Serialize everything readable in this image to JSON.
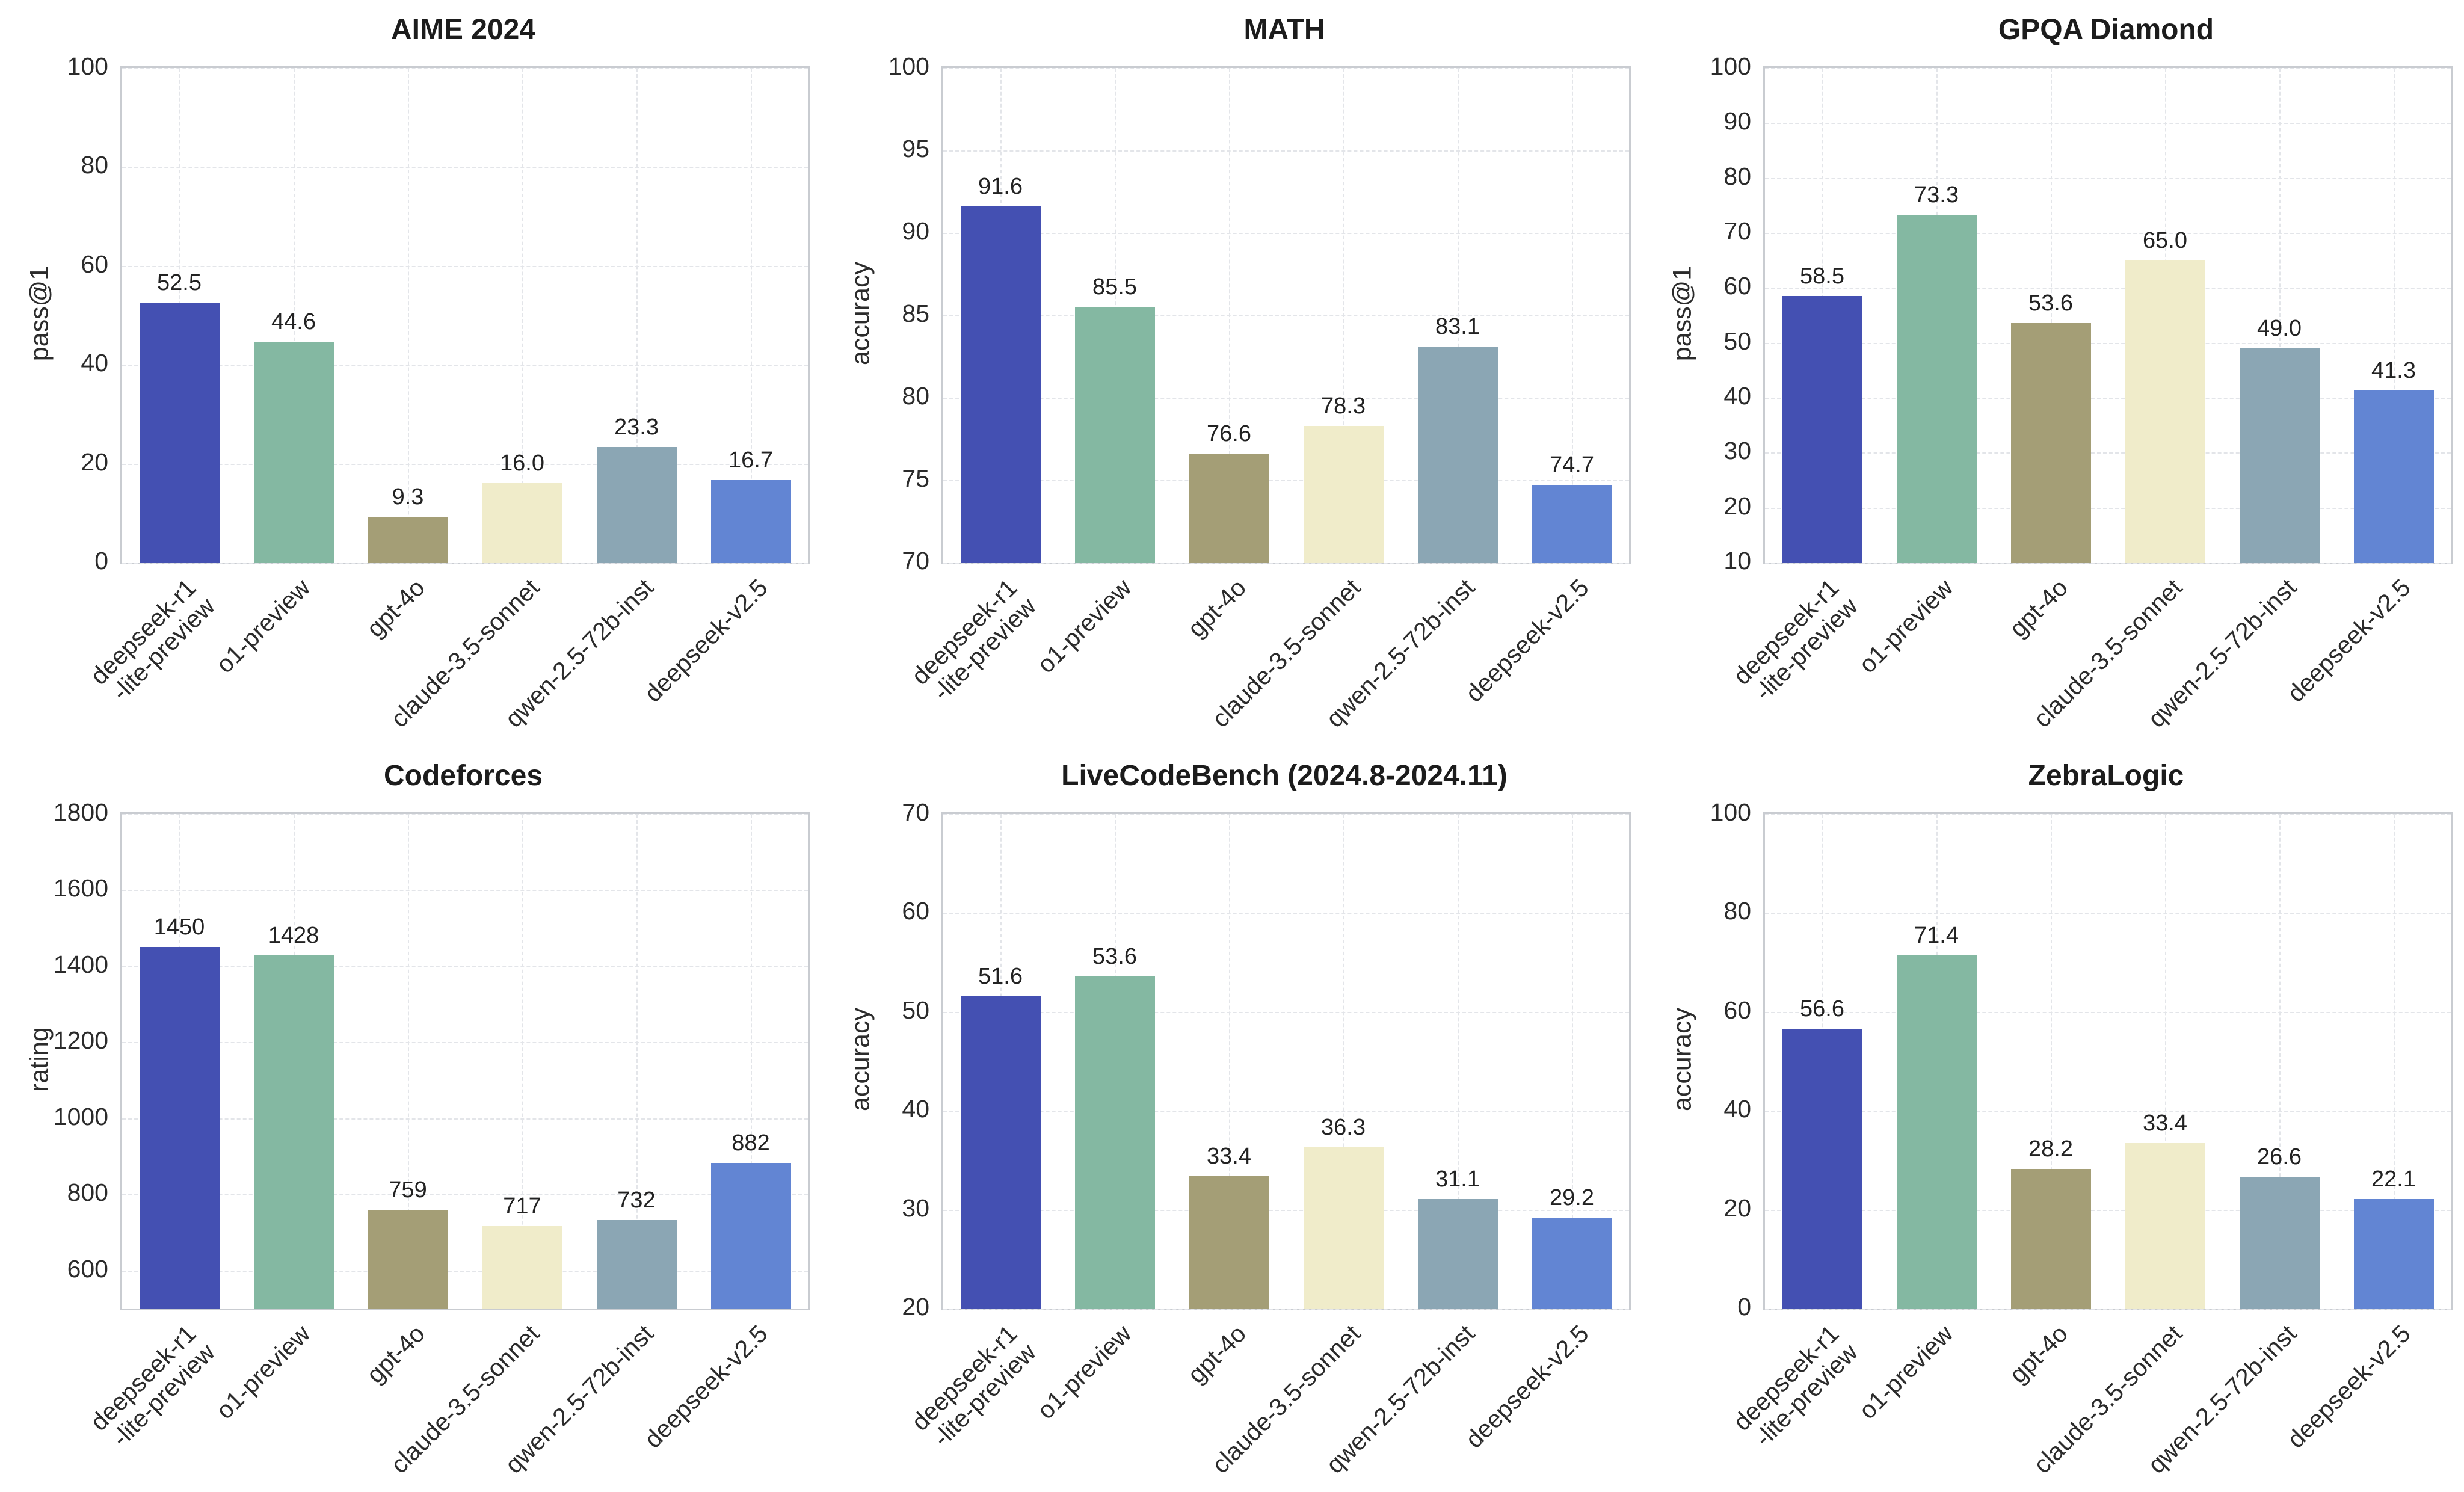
{
  "figure": {
    "background": "#ffffff",
    "grid_color": "#e3e5e9",
    "frame_color": "#c9ccd1",
    "title_color": "#1c1c1c",
    "tick_color": "#2b2b2b",
    "value_label_color": "#222222"
  },
  "palette": [
    "#4450b2",
    "#84b8a2",
    "#a49e76",
    "#f0ecca",
    "#8ba6b4",
    "#6285d3"
  ],
  "chart_data": [
    {
      "type": "bar",
      "title": "AIME 2024",
      "xlabel": "",
      "ylabel": "pass@1",
      "ylim": [
        0,
        100
      ],
      "yticks": [
        0,
        20,
        40,
        60,
        80,
        100
      ],
      "grid": true,
      "legend": false,
      "categories": [
        "deepseek-r1\n-lite-preview",
        "o1-preview",
        "gpt-4o",
        "claude-3.5-sonnet",
        "qwen-2.5-72b-inst",
        "deepseek-v2.5"
      ],
      "values": [
        52.5,
        44.6,
        9.3,
        16.0,
        23.3,
        16.7
      ],
      "value_labels": [
        "52.5",
        "44.6",
        "9.3",
        "16.0",
        "23.3",
        "16.7"
      ]
    },
    {
      "type": "bar",
      "title": "MATH",
      "xlabel": "",
      "ylabel": "accuracy",
      "ylim": [
        70,
        100
      ],
      "yticks": [
        70,
        75,
        80,
        85,
        90,
        95,
        100
      ],
      "grid": true,
      "legend": false,
      "categories": [
        "deepseek-r1\n-lite-preview",
        "o1-preview",
        "gpt-4o",
        "claude-3.5-sonnet",
        "qwen-2.5-72b-inst",
        "deepseek-v2.5"
      ],
      "values": [
        91.6,
        85.5,
        76.6,
        78.3,
        83.1,
        74.7
      ],
      "value_labels": [
        "91.6",
        "85.5",
        "76.6",
        "78.3",
        "83.1",
        "74.7"
      ]
    },
    {
      "type": "bar",
      "title": "GPQA Diamond",
      "xlabel": "",
      "ylabel": "pass@1",
      "ylim": [
        10,
        100
      ],
      "yticks": [
        10,
        20,
        30,
        40,
        50,
        60,
        70,
        80,
        90,
        100
      ],
      "grid": true,
      "legend": false,
      "categories": [
        "deepseek-r1\n-lite-preview",
        "o1-preview",
        "gpt-4o",
        "claude-3.5-sonnet",
        "qwen-2.5-72b-inst",
        "deepseek-v2.5"
      ],
      "values": [
        58.5,
        73.3,
        53.6,
        65.0,
        49.0,
        41.3
      ],
      "value_labels": [
        "58.5",
        "73.3",
        "53.6",
        "65.0",
        "49.0",
        "41.3"
      ]
    },
    {
      "type": "bar",
      "title": "Codeforces",
      "xlabel": "",
      "ylabel": "rating",
      "ylim": [
        500,
        1800
      ],
      "yticks": [
        600,
        800,
        1000,
        1200,
        1400,
        1600,
        1800
      ],
      "grid": true,
      "legend": false,
      "categories": [
        "deepseek-r1\n-lite-preview",
        "o1-preview",
        "gpt-4o",
        "claude-3.5-sonnet",
        "qwen-2.5-72b-inst",
        "deepseek-v2.5"
      ],
      "values": [
        1450,
        1428,
        759,
        717,
        732,
        882
      ],
      "value_labels": [
        "1450",
        "1428",
        "759",
        "717",
        "732",
        "882"
      ]
    },
    {
      "type": "bar",
      "title": "LiveCodeBench (2024.8-2024.11)",
      "xlabel": "",
      "ylabel": "accuracy",
      "ylim": [
        20,
        70
      ],
      "yticks": [
        20,
        30,
        40,
        50,
        60,
        70
      ],
      "grid": true,
      "legend": false,
      "categories": [
        "deepseek-r1\n-lite-preview",
        "o1-preview",
        "gpt-4o",
        "claude-3.5-sonnet",
        "qwen-2.5-72b-inst",
        "deepseek-v2.5"
      ],
      "values": [
        51.6,
        53.6,
        33.4,
        36.3,
        31.1,
        29.2
      ],
      "value_labels": [
        "51.6",
        "53.6",
        "33.4",
        "36.3",
        "31.1",
        "29.2"
      ]
    },
    {
      "type": "bar",
      "title": "ZebraLogic",
      "xlabel": "",
      "ylabel": "accuracy",
      "ylim": [
        0,
        100
      ],
      "yticks": [
        0,
        20,
        40,
        60,
        80,
        100
      ],
      "grid": true,
      "legend": false,
      "categories": [
        "deepseek-r1\n-lite-preview",
        "o1-preview",
        "gpt-4o",
        "claude-3.5-sonnet",
        "qwen-2.5-72b-inst",
        "deepseek-v2.5"
      ],
      "values": [
        56.6,
        71.4,
        28.2,
        33.4,
        26.6,
        22.1
      ],
      "value_labels": [
        "56.6",
        "71.4",
        "28.2",
        "33.4",
        "26.6",
        "22.1"
      ]
    }
  ]
}
